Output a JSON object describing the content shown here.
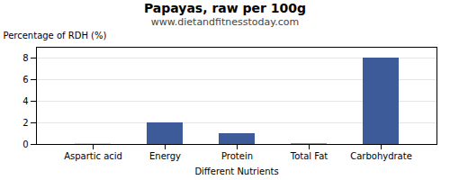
{
  "chart_data": {
    "type": "bar",
    "title": "Papayas, raw per 100g",
    "subtitle": "www.dietandfitnesstoday.com",
    "xlabel": "Different Nutrients",
    "ylabel": "Percentage of RDH (%)",
    "categories": [
      "Aspartic acid",
      "Energy",
      "Protein",
      "Total Fat",
      "Carbohydrate"
    ],
    "values": [
      0.02,
      2.0,
      1.0,
      0.05,
      8.0
    ],
    "color": "#3d5a99",
    "ylim": [
      0,
      9
    ],
    "yticks": [
      0,
      2,
      4,
      6,
      8
    ],
    "grid": true
  }
}
